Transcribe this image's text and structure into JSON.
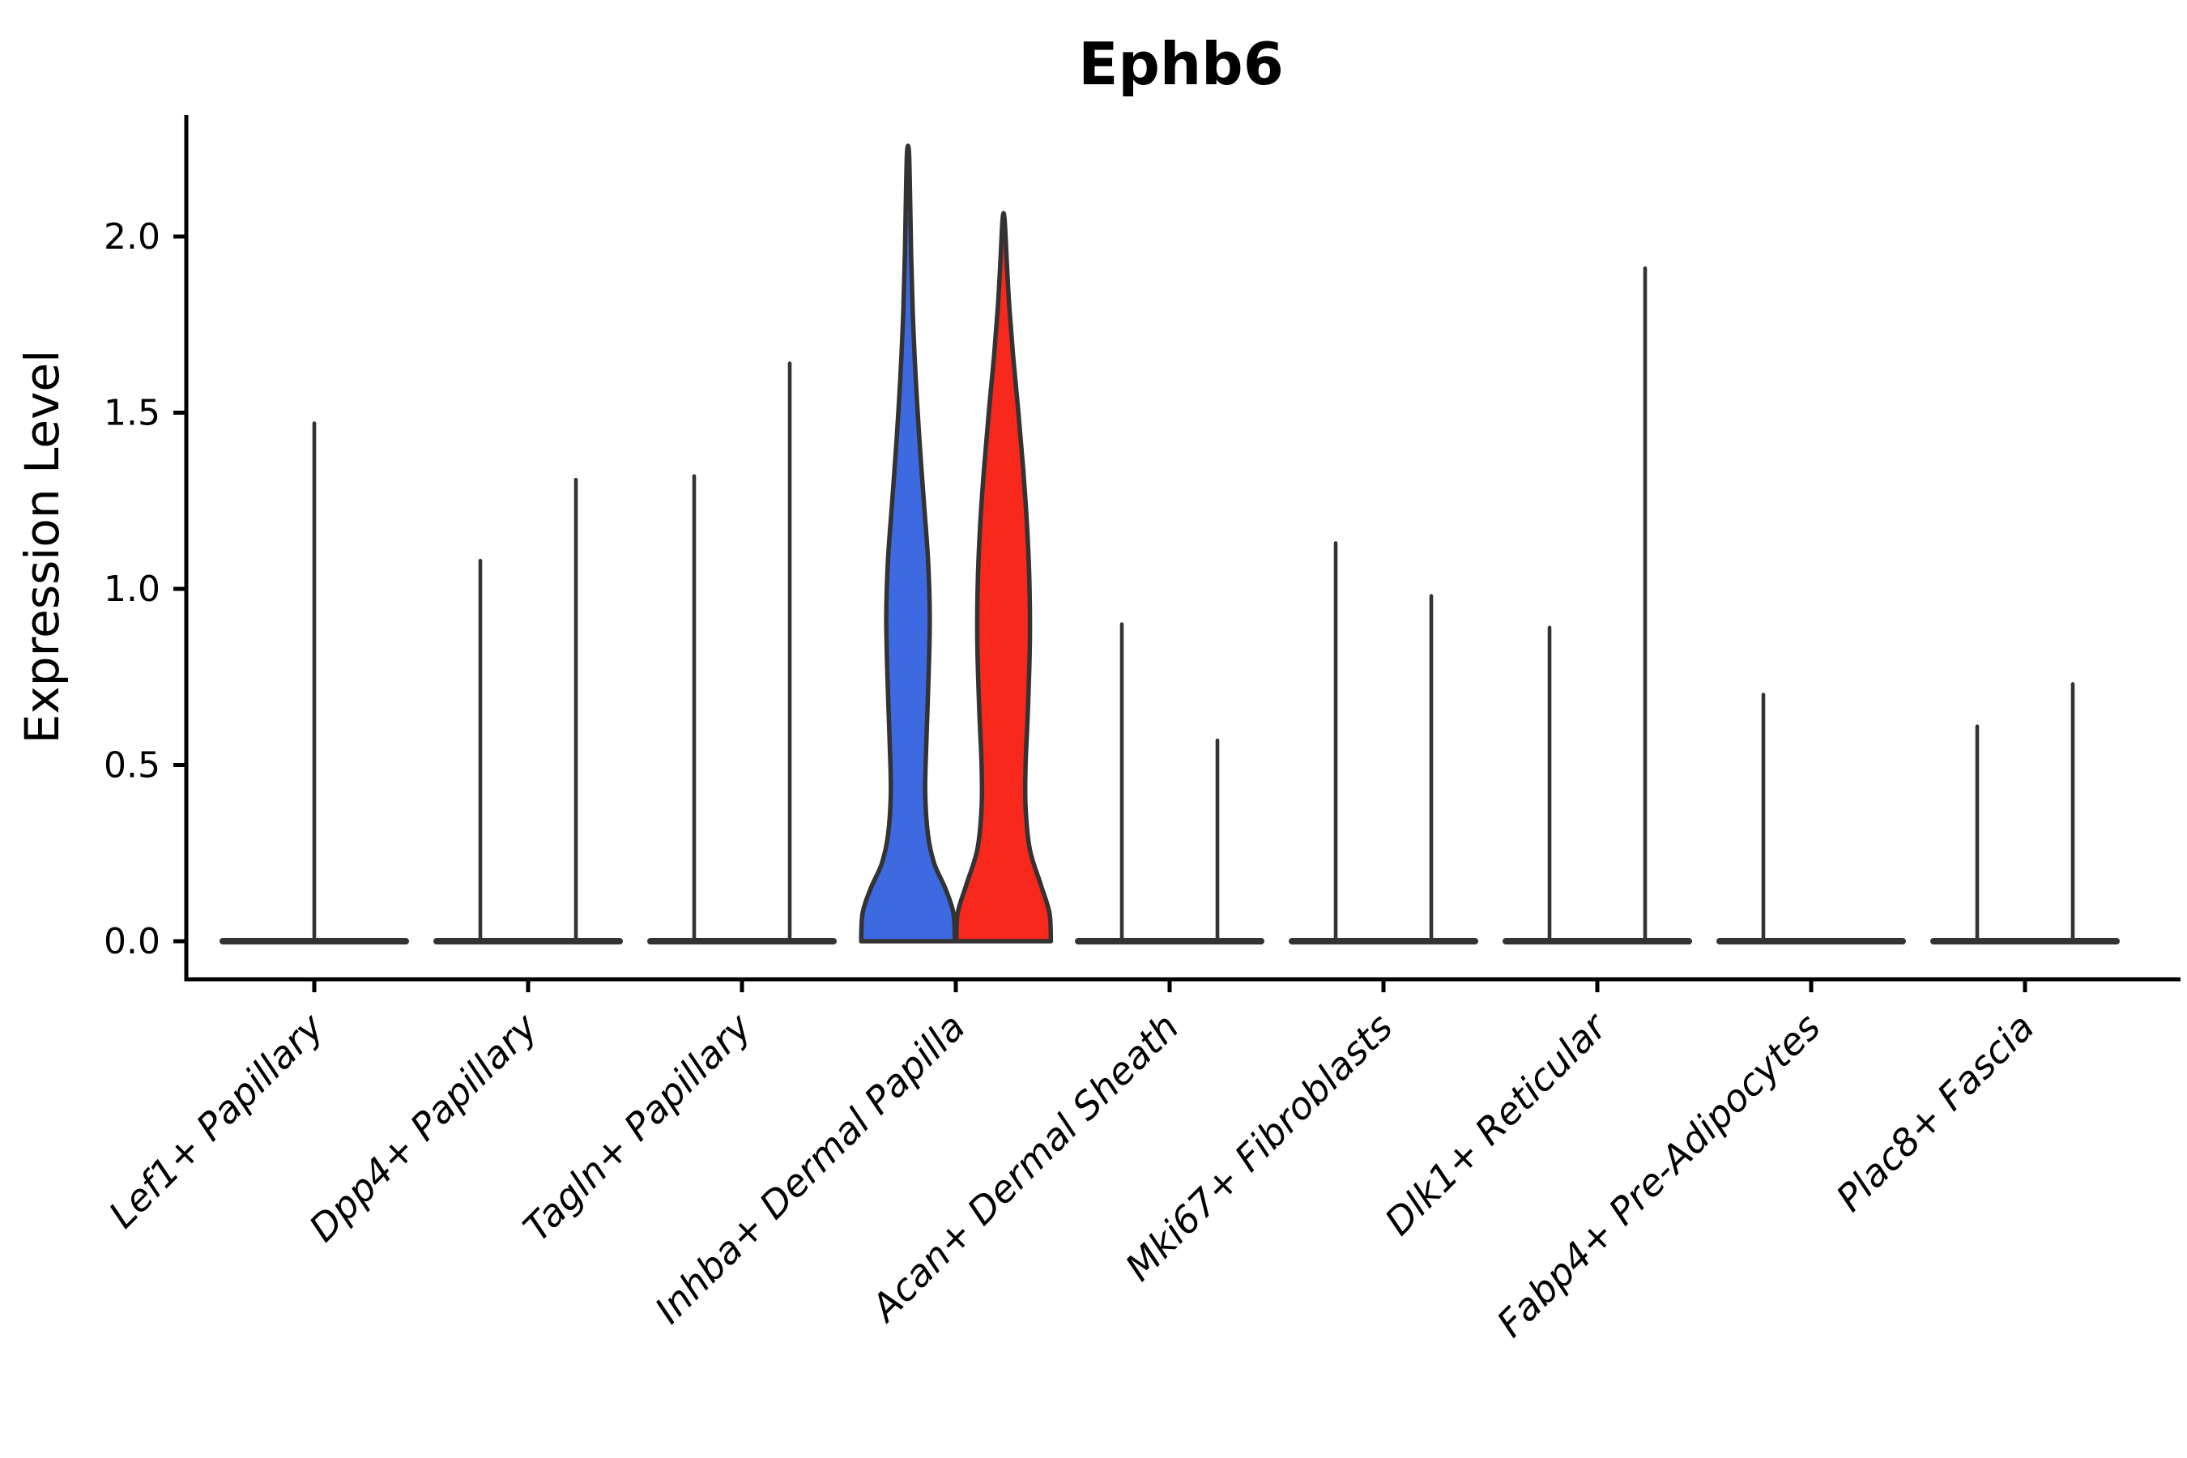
{
  "chart_data": {
    "type": "violin",
    "title": "Ephb6",
    "ylabel": "Expression Level",
    "xlabel": "",
    "yticks": [
      "0.0",
      "0.5",
      "1.0",
      "1.5",
      "2.0"
    ],
    "ylim": [
      -0.1,
      2.35
    ],
    "grid": false,
    "legend": "none",
    "background": "#ffffff",
    "axis_color": "#000000",
    "line_color": "#333333",
    "group_colors": {
      "blue": "#3e6ae1",
      "red": "#f8281c"
    },
    "categories": [
      "Lef1+ Papillary",
      "Dpp4+ Papillary",
      "Tagln+ Papillary",
      "Inhba+ Dermal Papilla",
      "Acan+ Dermal Sheath",
      "Mki67+ Fibroblasts",
      "Dlk1+ Reticular",
      "Fabp4+ Pre-Adipocytes",
      "Plac8+ Fascia"
    ],
    "violins": [
      {
        "category": "Lef1+ Papillary",
        "items": [
          {
            "pos": "center",
            "style": "spike",
            "max": 1.47
          }
        ]
      },
      {
        "category": "Dpp4+ Papillary",
        "items": [
          {
            "pos": "left",
            "style": "spike",
            "max": 1.08
          },
          {
            "pos": "right",
            "style": "spike",
            "max": 1.31
          }
        ]
      },
      {
        "category": "Tagln+ Papillary",
        "items": [
          {
            "pos": "left",
            "style": "spike",
            "max": 1.32
          },
          {
            "pos": "right",
            "style": "spike",
            "max": 1.64
          }
        ]
      },
      {
        "category": "Inhba+ Dermal Papilla",
        "items": [
          {
            "pos": "left",
            "style": "violin",
            "max": 2.24,
            "color": "#3e6ae1",
            "profile": [
              [
                0,
                0.98
              ],
              [
                0.08,
                0.95
              ],
              [
                0.15,
                0.78
              ],
              [
                0.22,
                0.55
              ],
              [
                0.3,
                0.42
              ],
              [
                0.42,
                0.36
              ],
              [
                0.55,
                0.38
              ],
              [
                0.75,
                0.43
              ],
              [
                0.92,
                0.455
              ],
              [
                1.08,
                0.42
              ],
              [
                1.25,
                0.33
              ],
              [
                1.42,
                0.24
              ],
              [
                1.6,
                0.16
              ],
              [
                1.78,
                0.1
              ],
              [
                1.95,
                0.065
              ],
              [
                2.1,
                0.045
              ],
              [
                2.24,
                0.02
              ]
            ]
          },
          {
            "pos": "right",
            "style": "violin",
            "max": 2.05,
            "color": "#f8281c",
            "profile": [
              [
                0,
                0.99
              ],
              [
                0.08,
                0.96
              ],
              [
                0.16,
                0.78
              ],
              [
                0.26,
                0.55
              ],
              [
                0.38,
                0.46
              ],
              [
                0.5,
                0.46
              ],
              [
                0.66,
                0.51
              ],
              [
                0.85,
                0.55
              ],
              [
                1.02,
                0.54
              ],
              [
                1.18,
                0.49
              ],
              [
                1.34,
                0.41
              ],
              [
                1.5,
                0.31
              ],
              [
                1.66,
                0.2
              ],
              [
                1.8,
                0.12
              ],
              [
                1.92,
                0.07
              ],
              [
                2.05,
                0.02
              ]
            ]
          }
        ]
      },
      {
        "category": "Acan+ Dermal Sheath",
        "items": [
          {
            "pos": "left",
            "style": "spike",
            "max": 0.9
          },
          {
            "pos": "right",
            "style": "spike",
            "max": 0.57
          }
        ]
      },
      {
        "category": "Mki67+ Fibroblasts",
        "items": [
          {
            "pos": "left",
            "style": "spike",
            "max": 1.13
          },
          {
            "pos": "right",
            "style": "spike",
            "max": 0.98
          }
        ]
      },
      {
        "category": "Dlk1+ Reticular",
        "items": [
          {
            "pos": "left",
            "style": "spike",
            "max": 0.89
          },
          {
            "pos": "right",
            "style": "spike",
            "max": 1.91
          }
        ]
      },
      {
        "category": "Fabp4+ Pre-Adipocytes",
        "items": [
          {
            "pos": "left",
            "style": "spike",
            "max": 0.7
          }
        ]
      },
      {
        "category": "Plac8+ Fascia",
        "items": [
          {
            "pos": "left",
            "style": "spike",
            "max": 0.61
          },
          {
            "pos": "right",
            "style": "spike",
            "max": 0.73
          }
        ]
      }
    ]
  }
}
